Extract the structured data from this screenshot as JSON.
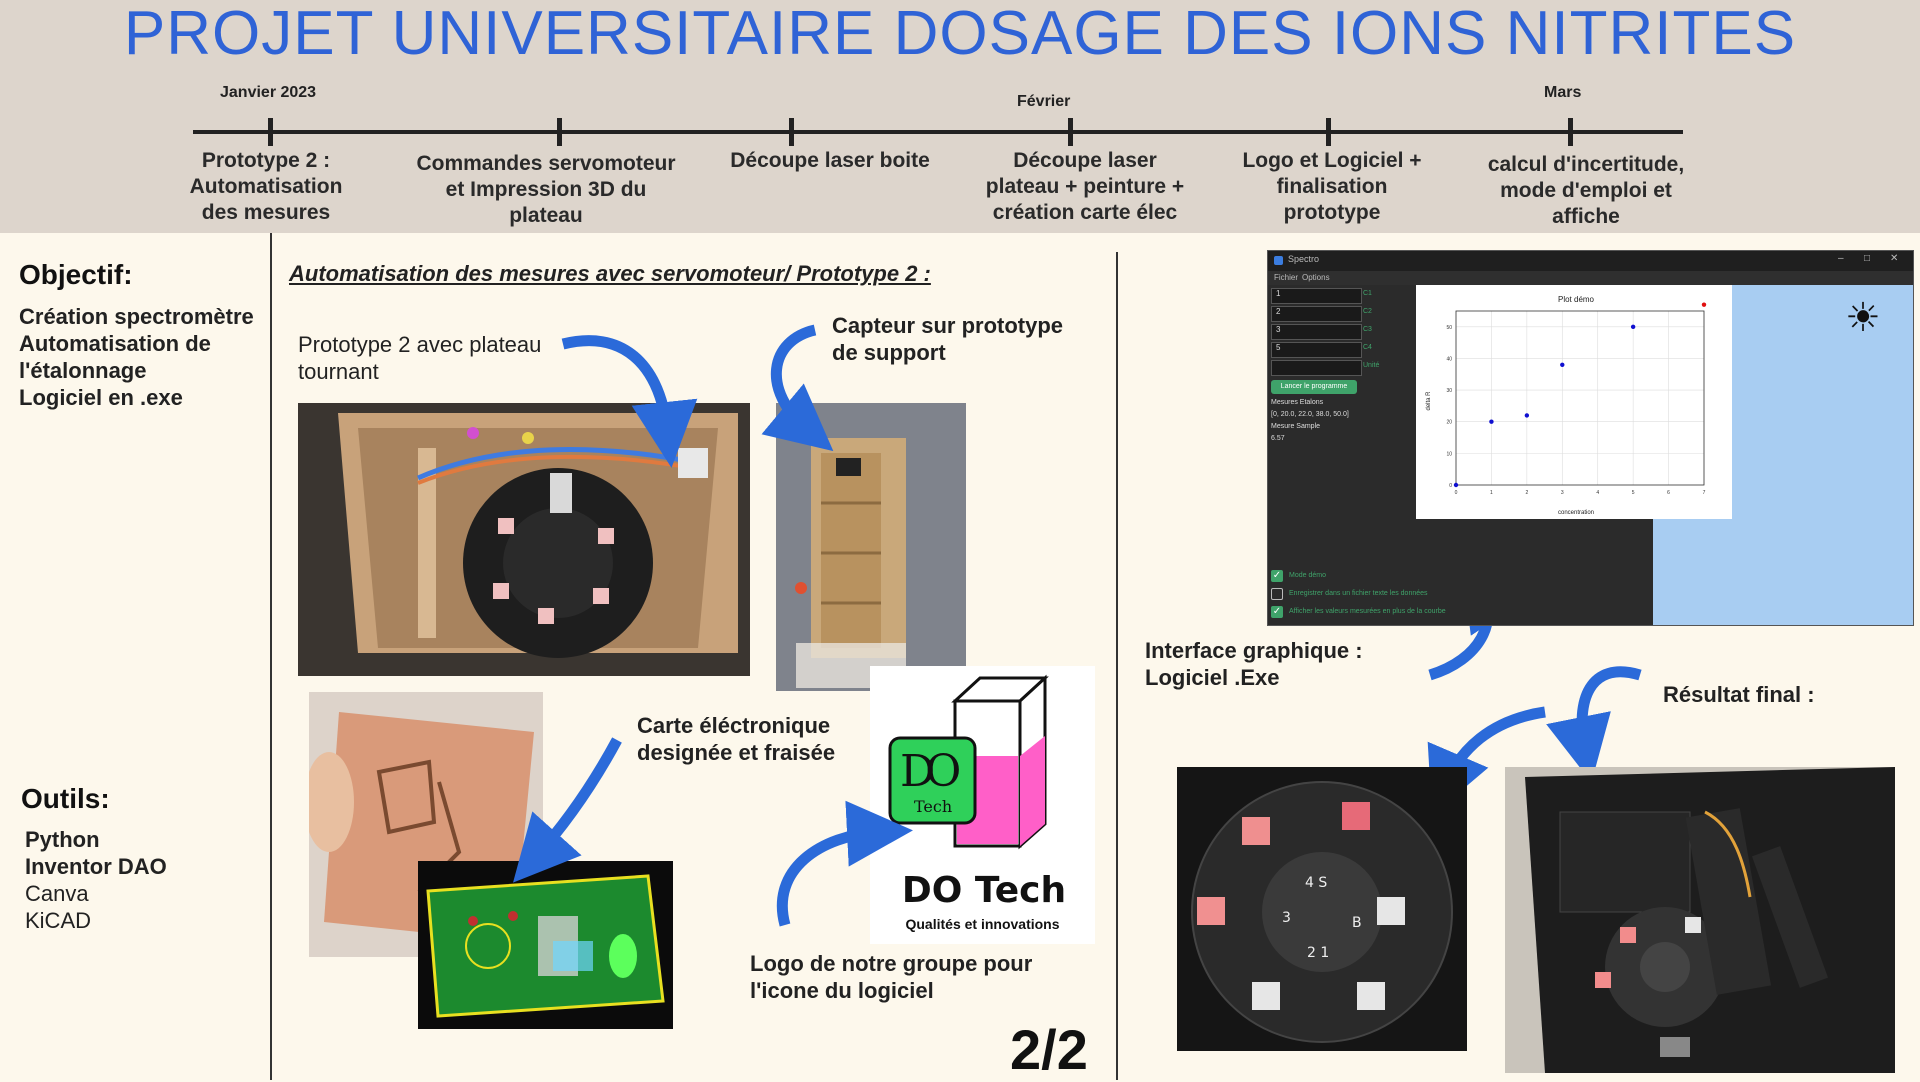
{
  "header": {
    "title": "PROJET UNIVERSITAIRE DOSAGE DES IONS NITRITES",
    "months": [
      "Janvier 2023",
      "Février",
      "Mars"
    ],
    "steps": [
      "Prototype 2 :\nAutomatisation\ndes mesures",
      "Commandes servomoteur\net Impression 3D du\nplateau",
      "Découpe laser boite",
      "Découpe laser\nplateau + peinture +\ncréation carte élec",
      "Logo et Logiciel +\nfinalisation\nprototype",
      "calcul d'incertitude,\nmode d'emploi et\naffiche"
    ]
  },
  "left": {
    "objectif_title": "Objectif:",
    "objectif_items": [
      "Création spectromètre",
      "Automatisation de",
      "l'étalonnage",
      "Logiciel en .exe"
    ],
    "outils_title": "Outils:",
    "outils_items": [
      "Python",
      "Inventor DAO",
      "Canva",
      "KiCAD"
    ]
  },
  "middle": {
    "subtitle": "Automatisation des mesures avec servomoteur/ Prototype 2 :",
    "cap_proto": "Prototype 2 avec plateau\ntournant",
    "cap_capteur": "Capteur sur prototype\nde support",
    "cap_carte": "Carte éléctronique\ndesignée et fraisée",
    "cap_logo": "Logo de notre groupe pour\nl'icone du logiciel",
    "logo": {
      "initials": "DO",
      "tech_small": "Tech",
      "name": "DO Tech",
      "tagline": "Qualités et innovations"
    },
    "page_number": "2/2"
  },
  "right": {
    "cap_interface": "Interface graphique :\nLogiciel .Exe",
    "cap_final": "Résultat final :"
  },
  "app": {
    "window_title": "Spectro",
    "menu": [
      "Fichier",
      "Options"
    ],
    "inputs": [
      "1",
      "2",
      "3",
      "5",
      ""
    ],
    "input_labels": [
      "C1",
      "C2",
      "C3",
      "C4",
      "Unité"
    ],
    "launch_button": "Lancer le programme",
    "info_lines": [
      "Mesures Etalons",
      "[0, 20.0, 22.0, 38.0, 50.0]",
      "Mesure Sample",
      "6.57"
    ],
    "checkboxes": [
      {
        "label": "Mode démo",
        "checked": true
      },
      {
        "label": "Enregistrer dans un fichier texte les données",
        "checked": false
      },
      {
        "label": "Afficher les valeurs mesurées en plus de la courbe",
        "checked": true
      }
    ]
  },
  "chart_data": {
    "type": "scatter",
    "title": "Plot démo",
    "xlabel": "concentration",
    "ylabel": "delta R",
    "xlim": [
      0,
      7
    ],
    "ylim": [
      0,
      55
    ],
    "xticks": [
      0,
      1,
      2,
      3,
      4,
      5,
      6,
      7
    ],
    "yticks": [
      0,
      10,
      20,
      30,
      40,
      50
    ],
    "grid": true,
    "series": [
      {
        "color": "#1010d0",
        "points": [
          [
            0,
            0
          ],
          [
            1,
            20
          ],
          [
            2,
            22
          ],
          [
            3,
            38
          ],
          [
            5,
            50
          ]
        ]
      },
      {
        "color": "#e01010",
        "points": [
          [
            7,
            57
          ]
        ]
      }
    ]
  },
  "colors": {
    "title_blue": "#2f63d6",
    "arrow_blue": "#2b6ad9",
    "app_dark": "#2b2b2b",
    "app_green": "#3fa36a",
    "logo_green": "#2fd05a",
    "logo_pink": "#ff5fc8",
    "sky": "#a8cdf2"
  }
}
